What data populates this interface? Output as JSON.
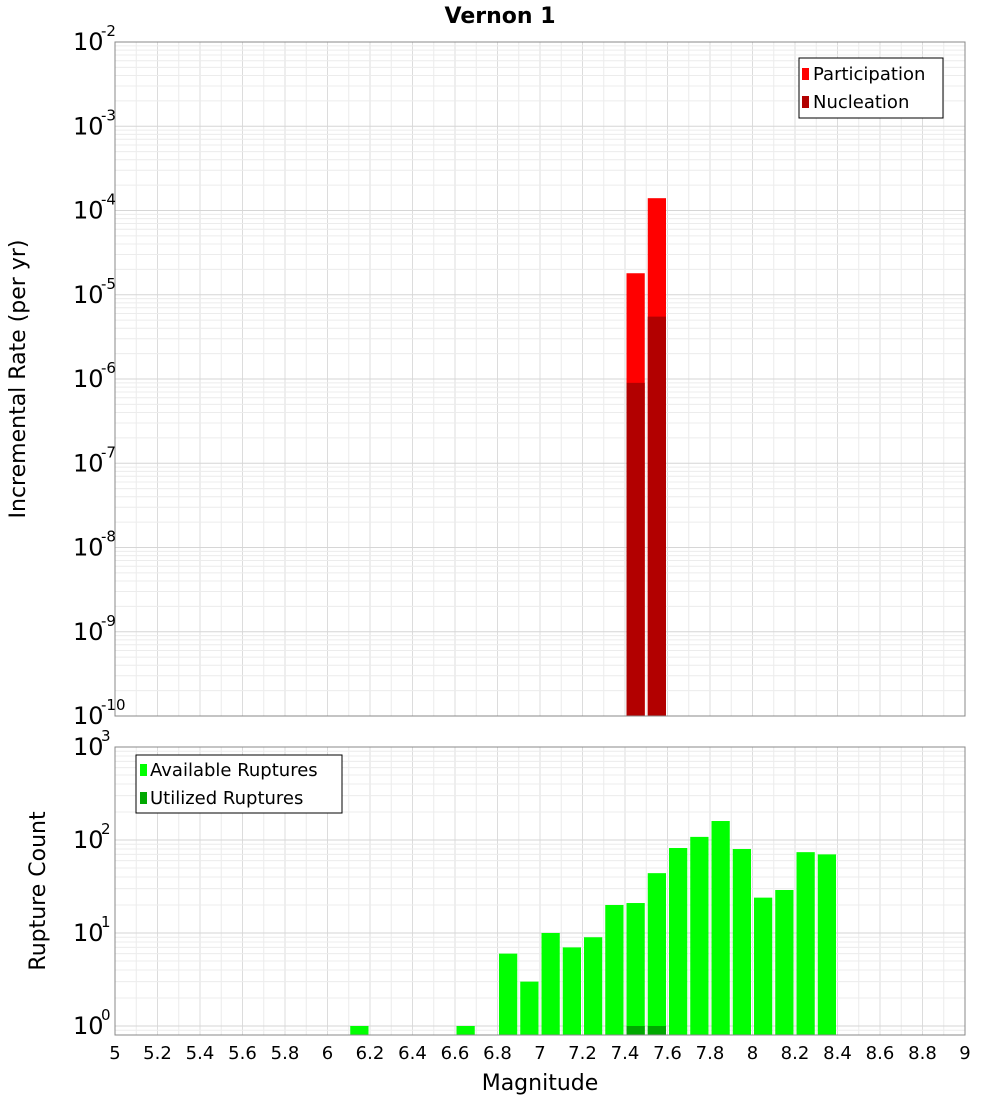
{
  "chart_data": [
    {
      "type": "bar",
      "title": "Vernon 1",
      "xlabel": "Magnitude",
      "ylabel": "Incremental Rate (per yr)",
      "yscale": "log",
      "xlim": [
        5,
        9
      ],
      "ylim": [
        1e-10,
        0.01
      ],
      "bin_width": 0.1,
      "legend_position": "top-right",
      "series": [
        {
          "name": "Participation",
          "color": "#ff0000",
          "x": [
            7.45,
            7.55
          ],
          "values": [
            1.8e-05,
            0.00014
          ]
        },
        {
          "name": "Nucleation",
          "color": "#b20000",
          "x": [
            7.45,
            7.55
          ],
          "values": [
            9e-07,
            5.5e-06
          ]
        }
      ],
      "y_ticks": [
        {
          "base": "10",
          "exp": "-2",
          "value": 0.01
        },
        {
          "base": "10",
          "exp": "-3",
          "value": 0.001
        },
        {
          "base": "10",
          "exp": "-4",
          "value": 0.0001
        },
        {
          "base": "10",
          "exp": "-5",
          "value": 1e-05
        },
        {
          "base": "10",
          "exp": "-6",
          "value": 1e-06
        },
        {
          "base": "10",
          "exp": "-7",
          "value": 1e-07
        },
        {
          "base": "10",
          "exp": "-8",
          "value": 1e-08
        },
        {
          "base": "10",
          "exp": "-9",
          "value": 1e-09
        },
        {
          "base": "10",
          "exp": "-10",
          "value": 1e-10
        }
      ]
    },
    {
      "type": "bar",
      "title": "",
      "xlabel": "Magnitude",
      "ylabel": "Rupture Count",
      "yscale": "log",
      "xlim": [
        5,
        9
      ],
      "ylim": [
        0.8,
        1000
      ],
      "bin_width": 0.1,
      "legend_position": "top-left",
      "series": [
        {
          "name": "Available Ruptures",
          "color": "#00ff00",
          "x": [
            6.15,
            6.65,
            6.85,
            6.95,
            7.05,
            7.15,
            7.25,
            7.35,
            7.45,
            7.55,
            7.65,
            7.75,
            7.85,
            7.95,
            8.05,
            8.15,
            8.25,
            8.35
          ],
          "values": [
            1,
            1,
            6,
            3,
            10,
            7,
            9,
            20,
            21,
            44,
            82,
            108,
            160,
            80,
            24,
            29,
            74,
            70
          ]
        },
        {
          "name": "Utilized Ruptures",
          "color": "#00a800",
          "x": [
            7.45,
            7.55
          ],
          "values": [
            1,
            1
          ]
        }
      ],
      "x_ticks": [
        "5",
        "5.2",
        "5.4",
        "5.6",
        "5.8",
        "6",
        "6.2",
        "6.4",
        "6.6",
        "6.8",
        "7",
        "7.2",
        "7.4",
        "7.6",
        "7.8",
        "8",
        "8.2",
        "8.4",
        "8.6",
        "8.8",
        "9"
      ],
      "y_ticks": [
        {
          "base": "10",
          "exp": "3",
          "value": 1000
        },
        {
          "base": "10",
          "exp": "2",
          "value": 100
        },
        {
          "base": "10",
          "exp": "1",
          "value": 10
        },
        {
          "base": "10",
          "exp": "0",
          "value": 1
        }
      ]
    }
  ]
}
